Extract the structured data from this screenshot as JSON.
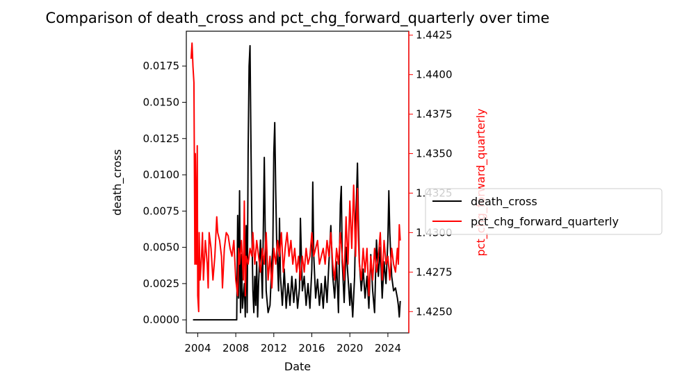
{
  "chart_data": {
    "type": "line",
    "title": "Comparison of death_cross and pct_chg_forward_quarterly over time",
    "xlabel": "Date",
    "ylabel_left": "death_cross",
    "ylabel_right": "pct_chg_forward_quarterly",
    "x_ticks": [
      "2004",
      "2008",
      "2012",
      "2016",
      "2020",
      "2024"
    ],
    "x_range": [
      2002.8,
      2026.2
    ],
    "y_left_ticks": [
      "0.0000",
      "0.0025",
      "0.0050",
      "0.0075",
      "0.0100",
      "0.0125",
      "0.0150",
      "0.0175"
    ],
    "y_left_range": [
      -0.0009,
      0.0199
    ],
    "y_right_ticks": [
      "1.4250",
      "1.4275",
      "1.4300",
      "1.4325",
      "1.4350",
      "1.4375",
      "1.4400",
      "1.4425"
    ],
    "y_right_range": [
      1.42365,
      1.44275
    ],
    "legend_position": "right, outside plot",
    "grid": false,
    "colors": {
      "left_axis": "#000000",
      "right_axis": "#ff0000"
    },
    "series": [
      {
        "name": "death_cross",
        "axis": "left",
        "color": "#000000",
        "points": [
          [
            2003.5,
            0.0
          ],
          [
            2005.0,
            0.0
          ],
          [
            2006.5,
            0.0
          ],
          [
            2008.1,
            0.0
          ],
          [
            2008.2,
            0.0072
          ],
          [
            2008.3,
            0.0015
          ],
          [
            2008.4,
            0.0089
          ],
          [
            2008.5,
            0.0005
          ],
          [
            2008.6,
            0.0045
          ],
          [
            2008.7,
            0.0008
          ],
          [
            2008.9,
            0.0025
          ],
          [
            2009.0,
            0.0002
          ],
          [
            2009.1,
            0.0065
          ],
          [
            2009.2,
            0.0005
          ],
          [
            2009.3,
            0.0115
          ],
          [
            2009.4,
            0.0175
          ],
          [
            2009.5,
            0.0189
          ],
          [
            2009.6,
            0.012
          ],
          [
            2009.7,
            0.006
          ],
          [
            2009.8,
            0.002
          ],
          [
            2009.9,
            0.0005
          ],
          [
            2010.0,
            0.003
          ],
          [
            2010.1,
            0.001
          ],
          [
            2010.2,
            0.004
          ],
          [
            2010.3,
            0.0002
          ],
          [
            2010.4,
            0.0025
          ],
          [
            2010.6,
            0.0055
          ],
          [
            2010.8,
            0.0015
          ],
          [
            2011.0,
            0.0112
          ],
          [
            2011.1,
            0.006
          ],
          [
            2011.2,
            0.002
          ],
          [
            2011.4,
            0.0005
          ],
          [
            2011.6,
            0.001
          ],
          [
            2011.8,
            0.004
          ],
          [
            2011.9,
            0.005
          ],
          [
            2012.0,
            0.0115
          ],
          [
            2012.1,
            0.0136
          ],
          [
            2012.2,
            0.009
          ],
          [
            2012.3,
            0.0055
          ],
          [
            2012.5,
            0.002
          ],
          [
            2012.6,
            0.007
          ],
          [
            2012.7,
            0.003
          ],
          [
            2012.9,
            0.001
          ],
          [
            2013.1,
            0.0035
          ],
          [
            2013.3,
            0.0008
          ],
          [
            2013.5,
            0.0025
          ],
          [
            2013.7,
            0.001
          ],
          [
            2013.9,
            0.003
          ],
          [
            2014.1,
            0.0012
          ],
          [
            2014.3,
            0.0028
          ],
          [
            2014.5,
            0.0008
          ],
          [
            2014.7,
            0.0022
          ],
          [
            2014.8,
            0.007
          ],
          [
            2015.0,
            0.002
          ],
          [
            2015.2,
            0.003
          ],
          [
            2015.4,
            0.001
          ],
          [
            2015.6,
            0.0025
          ],
          [
            2015.8,
            0.0008
          ],
          [
            2016.0,
            0.0035
          ],
          [
            2016.1,
            0.0095
          ],
          [
            2016.2,
            0.0045
          ],
          [
            2016.4,
            0.0015
          ],
          [
            2016.6,
            0.0028
          ],
          [
            2016.8,
            0.001
          ],
          [
            2017.0,
            0.0025
          ],
          [
            2017.2,
            0.0008
          ],
          [
            2017.4,
            0.003
          ],
          [
            2017.6,
            0.0012
          ],
          [
            2017.8,
            0.004
          ],
          [
            2018.0,
            0.0065
          ],
          [
            2018.2,
            0.003
          ],
          [
            2018.4,
            0.0015
          ],
          [
            2018.6,
            0.004
          ],
          [
            2018.8,
            0.0005
          ],
          [
            2019.0,
            0.008
          ],
          [
            2019.1,
            0.0092
          ],
          [
            2019.2,
            0.004
          ],
          [
            2019.4,
            0.0012
          ],
          [
            2019.6,
            0.005
          ],
          [
            2019.8,
            0.003
          ],
          [
            2020.0,
            0.001
          ],
          [
            2020.1,
            0.0025
          ],
          [
            2020.3,
            0.0002
          ],
          [
            2020.5,
            0.003
          ],
          [
            2020.6,
            0.0065
          ],
          [
            2020.7,
            0.0085
          ],
          [
            2020.8,
            0.0108
          ],
          [
            2020.9,
            0.007
          ],
          [
            2021.0,
            0.004
          ],
          [
            2021.2,
            0.002
          ],
          [
            2021.4,
            0.0035
          ],
          [
            2021.6,
            0.0015
          ],
          [
            2021.8,
            0.003
          ],
          [
            2022.0,
            0.0008
          ],
          [
            2022.2,
            0.0045
          ],
          [
            2022.4,
            0.002
          ],
          [
            2022.6,
            0.0005
          ],
          [
            2022.8,
            0.0055
          ],
          [
            2023.0,
            0.003
          ],
          [
            2023.2,
            0.005
          ],
          [
            2023.4,
            0.0015
          ],
          [
            2023.6,
            0.004
          ],
          [
            2023.8,
            0.0025
          ],
          [
            2024.0,
            0.0055
          ],
          [
            2024.1,
            0.0089
          ],
          [
            2024.2,
            0.006
          ],
          [
            2024.4,
            0.003
          ],
          [
            2024.6,
            0.002
          ],
          [
            2024.8,
            0.0022
          ],
          [
            2025.0,
            0.0015
          ],
          [
            2025.1,
            0.001
          ],
          [
            2025.2,
            0.0002
          ],
          [
            2025.3,
            0.0013
          ]
        ]
      },
      {
        "name": "pct_chg_forward_quarterly",
        "axis": "right",
        "color": "#ff0000",
        "points": [
          [
            2003.3,
            1.441
          ],
          [
            2003.4,
            1.442
          ],
          [
            2003.5,
            1.4405
          ],
          [
            2003.6,
            1.4395
          ],
          [
            2003.65,
            1.434
          ],
          [
            2003.7,
            1.428
          ],
          [
            2003.75,
            1.435
          ],
          [
            2003.85,
            1.428
          ],
          [
            2003.95,
            1.4355
          ],
          [
            2004.0,
            1.426
          ],
          [
            2004.1,
            1.425
          ],
          [
            2004.15,
            1.43
          ],
          [
            2004.25,
            1.427
          ],
          [
            2004.4,
            1.4285
          ],
          [
            2004.5,
            1.43
          ],
          [
            2004.6,
            1.427
          ],
          [
            2004.8,
            1.4295
          ],
          [
            2005.0,
            1.428
          ],
          [
            2005.1,
            1.4265
          ],
          [
            2005.2,
            1.43
          ],
          [
            2005.4,
            1.429
          ],
          [
            2005.6,
            1.427
          ],
          [
            2005.8,
            1.4285
          ],
          [
            2006.0,
            1.431
          ],
          [
            2006.1,
            1.43
          ],
          [
            2006.3,
            1.4295
          ],
          [
            2006.5,
            1.4285
          ],
          [
            2006.6,
            1.4265
          ],
          [
            2006.8,
            1.429
          ],
          [
            2007.0,
            1.43
          ],
          [
            2007.2,
            1.4298
          ],
          [
            2007.4,
            1.429
          ],
          [
            2007.6,
            1.4285
          ],
          [
            2007.8,
            1.4295
          ],
          [
            2008.0,
            1.427
          ],
          [
            2008.2,
            1.426
          ],
          [
            2008.3,
            1.429
          ],
          [
            2008.4,
            1.428
          ],
          [
            2008.6,
            1.4295
          ],
          [
            2008.8,
            1.427
          ],
          [
            2008.9,
            1.432
          ],
          [
            2009.0,
            1.426
          ],
          [
            2009.1,
            1.4285
          ],
          [
            2009.3,
            1.428
          ],
          [
            2009.5,
            1.429
          ],
          [
            2009.7,
            1.4285
          ],
          [
            2009.8,
            1.43
          ],
          [
            2010.0,
            1.428
          ],
          [
            2010.2,
            1.4295
          ],
          [
            2010.4,
            1.4285
          ],
          [
            2010.6,
            1.4275
          ],
          [
            2010.8,
            1.429
          ],
          [
            2011.0,
            1.428
          ],
          [
            2011.2,
            1.43
          ],
          [
            2011.4,
            1.427
          ],
          [
            2011.6,
            1.4285
          ],
          [
            2011.8,
            1.4265
          ],
          [
            2012.0,
            1.429
          ],
          [
            2012.2,
            1.428
          ],
          [
            2012.4,
            1.4295
          ],
          [
            2012.6,
            1.4285
          ],
          [
            2012.8,
            1.43
          ],
          [
            2013.0,
            1.4275
          ],
          [
            2013.2,
            1.429
          ],
          [
            2013.4,
            1.43
          ],
          [
            2013.6,
            1.4285
          ],
          [
            2013.8,
            1.4295
          ],
          [
            2014.0,
            1.428
          ],
          [
            2014.2,
            1.429
          ],
          [
            2014.4,
            1.4275
          ],
          [
            2014.6,
            1.4285
          ],
          [
            2014.8,
            1.427
          ],
          [
            2015.0,
            1.4285
          ],
          [
            2015.2,
            1.4275
          ],
          [
            2015.4,
            1.429
          ],
          [
            2015.6,
            1.428
          ],
          [
            2015.8,
            1.4285
          ],
          [
            2016.0,
            1.43
          ],
          [
            2016.2,
            1.4285
          ],
          [
            2016.4,
            1.429
          ],
          [
            2016.6,
            1.4295
          ],
          [
            2016.8,
            1.428
          ],
          [
            2017.0,
            1.4285
          ],
          [
            2017.2,
            1.429
          ],
          [
            2017.4,
            1.428
          ],
          [
            2017.6,
            1.4295
          ],
          [
            2017.8,
            1.4285
          ],
          [
            2018.0,
            1.43
          ],
          [
            2018.2,
            1.428
          ],
          [
            2018.4,
            1.427
          ],
          [
            2018.6,
            1.429
          ],
          [
            2018.8,
            1.428
          ],
          [
            2019.0,
            1.43
          ],
          [
            2019.2,
            1.4285
          ],
          [
            2019.4,
            1.427
          ],
          [
            2019.6,
            1.431
          ],
          [
            2019.8,
            1.428
          ],
          [
            2020.0,
            1.432
          ],
          [
            2020.2,
            1.429
          ],
          [
            2020.4,
            1.433
          ],
          [
            2020.6,
            1.4285
          ],
          [
            2020.8,
            1.4328
          ],
          [
            2020.9,
            1.4295
          ],
          [
            2021.0,
            1.428
          ],
          [
            2021.2,
            1.427
          ],
          [
            2021.4,
            1.429
          ],
          [
            2021.6,
            1.4275
          ],
          [
            2021.8,
            1.429
          ],
          [
            2022.0,
            1.426
          ],
          [
            2022.2,
            1.4285
          ],
          [
            2022.4,
            1.427
          ],
          [
            2022.6,
            1.429
          ],
          [
            2022.8,
            1.4275
          ],
          [
            2023.0,
            1.4285
          ],
          [
            2023.2,
            1.43
          ],
          [
            2023.4,
            1.427
          ],
          [
            2023.6,
            1.4295
          ],
          [
            2023.8,
            1.428
          ],
          [
            2024.0,
            1.4285
          ],
          [
            2024.2,
            1.427
          ],
          [
            2024.4,
            1.429
          ],
          [
            2024.6,
            1.428
          ],
          [
            2024.8,
            1.4275
          ],
          [
            2025.0,
            1.429
          ],
          [
            2025.1,
            1.428
          ],
          [
            2025.2,
            1.4305
          ],
          [
            2025.3,
            1.4295
          ]
        ]
      }
    ]
  }
}
